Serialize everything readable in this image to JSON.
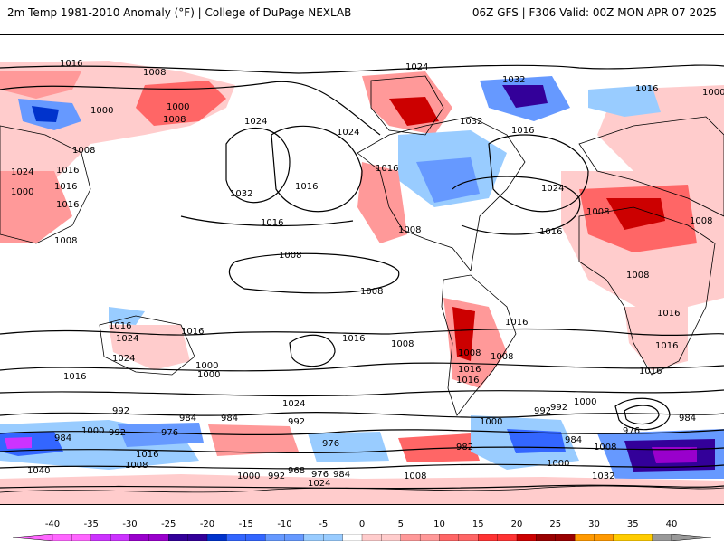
{
  "header": {
    "left_title": "2m Temp 1981-2010 Anomaly (°F) | College of DuPage NEXLAB",
    "right_title": "06Z GFS | F306 Valid: 00Z MON APR 07 2025"
  },
  "map": {
    "type": "global-anomaly-map",
    "projection": "equirectangular-pacific-centered",
    "contour_labels": [
      "1016",
      "1008",
      "1024",
      "1032",
      "1016",
      "1000",
      "1008",
      "1000",
      "1008",
      "1024",
      "1024",
      "1032",
      "1016",
      "1016",
      "1024",
      "1016",
      "1000",
      "1016",
      "1032",
      "1024",
      "1016",
      "1008",
      "1016",
      "1008",
      "1008",
      "1008",
      "1016",
      "1024",
      "1016",
      "1008",
      "1000",
      "1016",
      "1016",
      "1008",
      "1008",
      "1016",
      "1008",
      "1016",
      "1024",
      "992",
      "992",
      "984",
      "1000",
      "984",
      "976",
      "1000",
      "992",
      "1016",
      "1040",
      "1008",
      "1000",
      "992",
      "968",
      "976",
      "984",
      "1024",
      "1008",
      "976",
      "992",
      "984",
      "1000",
      "1008",
      "1032",
      "982",
      "1016",
      "1016",
      "1000",
      "992",
      "976",
      "984",
      "1016",
      "1008",
      "984",
      "1008",
      "1024",
      "1000",
      "1016",
      "1000",
      "1016",
      "1016"
    ]
  },
  "colorbar": {
    "ticks": [
      "-40",
      "-35",
      "-30",
      "-25",
      "-20",
      "-15",
      "-10",
      "-5",
      "0",
      "5",
      "10",
      "15",
      "20",
      "25",
      "30",
      "35",
      "40"
    ],
    "colors": [
      "#ff66ff",
      "#cc33ff",
      "#9900cc",
      "#330099",
      "#0033cc",
      "#3366ff",
      "#6699ff",
      "#99ccff",
      "#ffffff",
      "#ffcccc",
      "#ff9999",
      "#ff6666",
      "#ff3333",
      "#cc0000",
      "#990000",
      "#ff9900",
      "#ffcc00",
      "#999999"
    ],
    "end_left_color": "#ff66ff",
    "end_right_color": "#999999"
  }
}
